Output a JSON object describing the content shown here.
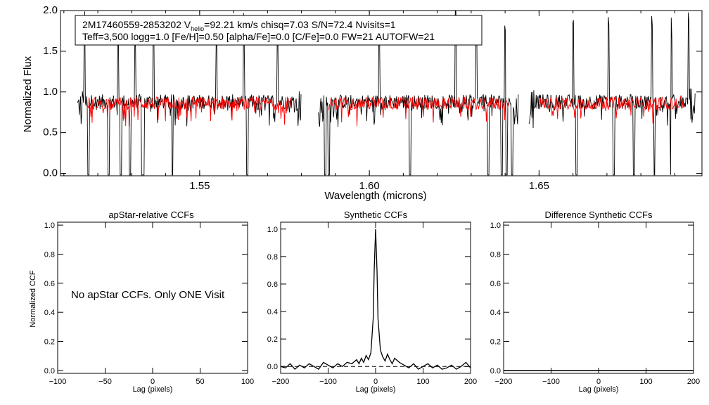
{
  "colors": {
    "observed": "#000000",
    "model": "#ff0000",
    "background": "#ffffff",
    "axes": "#000000"
  },
  "info": {
    "star_id": "2M17460559-2853202",
    "v_label": "V",
    "v_sub": "helio",
    "v_value": "=92.21 km/s",
    "stats": "chisq=7.03  S/N=72.4  Nvisits=1",
    "line2": "Teff=3,500 logg=1.0 [Fe/H]=0.50 [alpha/Fe]=0.0 [C/Fe]=0.0 FW=21 AUTOFW=21"
  },
  "chart_data": [
    {
      "id": "spectrum",
      "type": "line",
      "title": "",
      "xlabel": "Wavelength (microns)",
      "ylabel": "Normalized Flux",
      "xlim": [
        1.509,
        1.698
      ],
      "ylim": [
        -0.03,
        2.0
      ],
      "xticks": [
        1.55,
        1.6,
        1.65
      ],
      "xtick_labels": [
        "1.55",
        "1.60",
        "1.65"
      ],
      "yticks": [
        0.0,
        0.5,
        1.0,
        1.5,
        2.0
      ],
      "ytick_labels": [
        "0.0",
        "0.5",
        "1.0",
        "1.5",
        "2.0"
      ],
      "chips": [
        [
          1.514,
          1.58
        ],
        [
          1.585,
          1.644
        ],
        [
          1.647,
          1.696
        ]
      ],
      "series": [
        {
          "name": "observed",
          "color": "#000000",
          "continuum": 0.88,
          "noise": 0.09
        },
        {
          "name": "model",
          "color": "#ff0000",
          "continuum": 0.86,
          "noise": 0.08
        }
      ],
      "absorption_lines": [
        1.5127,
        1.5142,
        1.5172,
        1.5232,
        1.5268,
        1.5295,
        1.533,
        1.5335,
        1.542,
        1.564,
        1.579,
        1.5795,
        1.587,
        1.588,
        1.612,
        1.635,
        1.639,
        1.6405,
        1.642,
        1.661,
        1.672,
        1.678,
        1.684,
        1.689
      ],
      "emission_spikes": [
        1.516,
        1.526,
        1.531,
        1.5365,
        1.555,
        1.563,
        1.573,
        1.5857,
        1.603,
        1.6255,
        1.6315,
        1.64,
        1.647,
        1.66,
        1.6705,
        1.6832,
        1.689,
        1.694
      ]
    },
    {
      "id": "apstar-ccf",
      "type": "line",
      "title": "apStar-relative CCFs",
      "xlabel": "Lag (pixels)",
      "ylabel": "Normalized CCF",
      "xlim": [
        -100,
        100
      ],
      "ylim": [
        -0.02,
        1.02
      ],
      "xticks": [
        -100,
        -50,
        0,
        50,
        100
      ],
      "xtick_labels": [
        "−100",
        "−50",
        "0",
        "50",
        "100"
      ],
      "yticks": [
        0.0,
        0.2,
        0.4,
        0.6,
        0.8,
        1.0
      ],
      "ytick_labels": [
        "0.0",
        "0.2",
        "0.4",
        "0.6",
        "0.8",
        "1.0"
      ],
      "annotation": "No apStar CCFs.  Only ONE Visit",
      "series": []
    },
    {
      "id": "synthetic-ccf",
      "type": "line",
      "title": "Synthetic CCFs",
      "xlabel": "Lag (pixels)",
      "ylabel": "",
      "xlim": [
        -200,
        200
      ],
      "ylim": [
        -0.05,
        1.05
      ],
      "xticks": [
        -200,
        -100,
        0,
        100,
        200
      ],
      "xtick_labels": [
        "−200",
        "−100",
        "0",
        "100",
        "200"
      ],
      "yticks": [
        0.0,
        0.2,
        0.4,
        0.6,
        0.8,
        1.0
      ],
      "ytick_labels": [
        "0.0",
        "0.2",
        "0.4",
        "0.6",
        "0.8",
        "1.0"
      ],
      "baseline": 0.0,
      "series": [
        {
          "name": "ccf",
          "color": "#000000",
          "x": [
            -200,
            -190,
            -180,
            -170,
            -160,
            -150,
            -140,
            -130,
            -120,
            -110,
            -100,
            -90,
            -80,
            -70,
            -60,
            -50,
            -40,
            -35,
            -30,
            -25,
            -20,
            -15,
            -10,
            -5,
            -3,
            0,
            3,
            5,
            10,
            15,
            20,
            25,
            30,
            35,
            40,
            50,
            60,
            70,
            80,
            90,
            100,
            110,
            120,
            130,
            140,
            150,
            160,
            170,
            180,
            190,
            200
          ],
          "y": [
            0.0,
            -0.01,
            0.02,
            -0.02,
            0.01,
            -0.01,
            0.02,
            0.0,
            -0.02,
            0.03,
            0.01,
            -0.01,
            0.02,
            0.0,
            0.03,
            0.02,
            0.05,
            0.02,
            0.06,
            0.03,
            0.08,
            0.05,
            0.1,
            0.35,
            0.7,
            1.0,
            0.7,
            0.35,
            0.12,
            0.07,
            0.04,
            0.09,
            0.05,
            0.02,
            0.06,
            0.03,
            0.01,
            -0.01,
            0.02,
            -0.02,
            0.0,
            0.02,
            -0.01,
            0.01,
            -0.02,
            -0.01,
            0.01,
            -0.02,
            0.0,
            0.03,
            -0.01
          ]
        }
      ]
    },
    {
      "id": "difference-ccf",
      "type": "line",
      "title": "Difference Synthetic CCFs",
      "xlabel": "Lag (pixels)",
      "ylabel": "",
      "xlim": [
        -200,
        200
      ],
      "ylim": [
        -0.02,
        1.02
      ],
      "xticks": [
        -200,
        -100,
        0,
        100,
        200
      ],
      "xtick_labels": [
        "−200",
        "−100",
        "0",
        "100",
        "200"
      ],
      "yticks": [
        0.0,
        0.2,
        0.4,
        0.6,
        0.8,
        1.0
      ],
      "ytick_labels": [
        "0.0",
        "0.2",
        "0.4",
        "0.6",
        "0.8",
        "1.0"
      ],
      "series": [
        {
          "name": "difference",
          "color": "#000000",
          "x": [
            -200,
            200
          ],
          "y": [
            0.0,
            0.0
          ]
        }
      ]
    }
  ]
}
